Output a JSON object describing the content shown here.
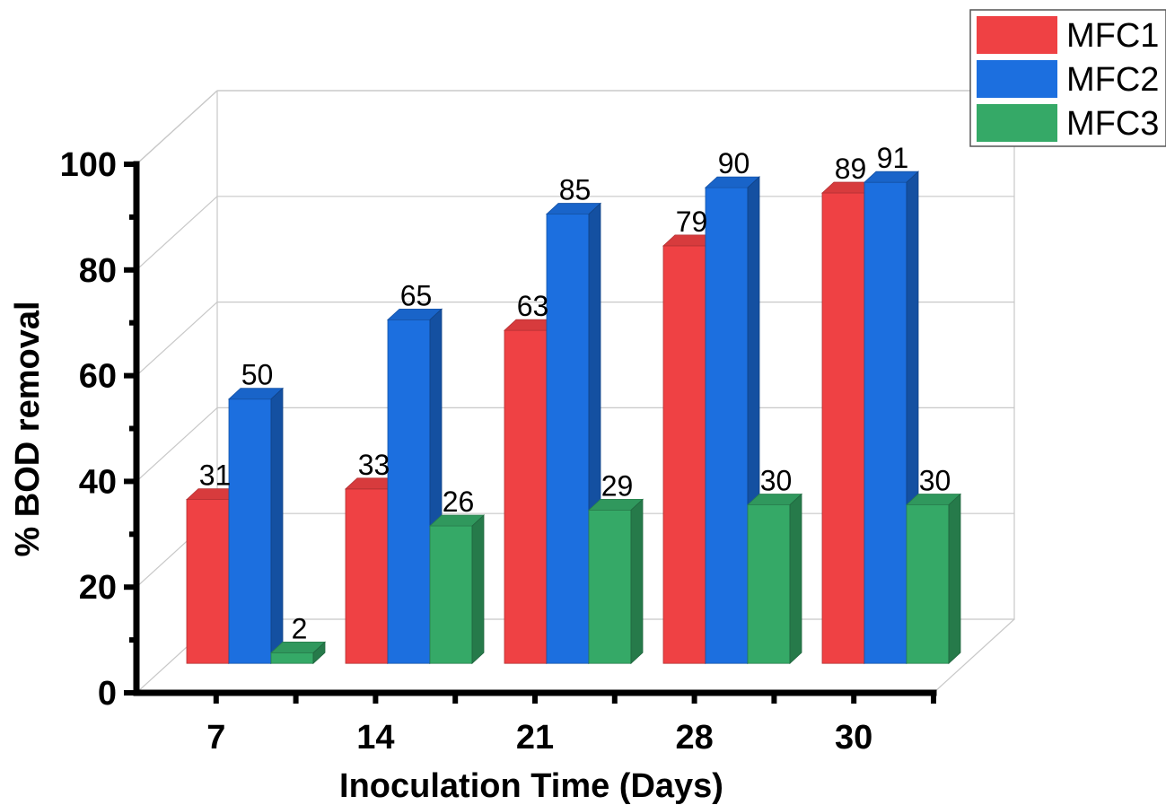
{
  "chart_data": {
    "type": "bar",
    "categories": [
      "7",
      "14",
      "21",
      "28",
      "30"
    ],
    "series": [
      {
        "name": "MFC1",
        "color": "#ef4144",
        "values": [
          31,
          33,
          63,
          79,
          89
        ]
      },
      {
        "name": "MFC2",
        "color": "#1c6fdf",
        "values": [
          50,
          65,
          85,
          90,
          91
        ]
      },
      {
        "name": "MFC3",
        "color": "#35a967",
        "values": [
          2,
          26,
          29,
          30,
          30
        ]
      }
    ],
    "xlabel": "Inoculation Time (Days)",
    "ylabel": "% BOD removal",
    "ylim": [
      0,
      100
    ],
    "yticks": [
      "0",
      "20",
      "40",
      "60",
      "80",
      "100"
    ],
    "grid": true,
    "legend_position": "top-right",
    "style": "3d"
  }
}
